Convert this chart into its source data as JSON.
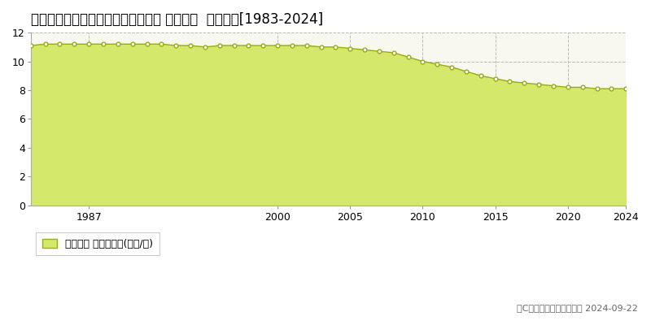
{
  "title": "宮崎県都城市下川東１丁目７号８番 基準地価  地価推移[1983-2024]",
  "years": [
    1983,
    1984,
    1985,
    1986,
    1987,
    1988,
    1989,
    1990,
    1991,
    1992,
    1993,
    1994,
    1995,
    1996,
    1997,
    1998,
    1999,
    2000,
    2001,
    2002,
    2003,
    2004,
    2005,
    2006,
    2007,
    2008,
    2009,
    2010,
    2011,
    2012,
    2013,
    2014,
    2015,
    2016,
    2017,
    2018,
    2019,
    2020,
    2021,
    2022,
    2023,
    2024
  ],
  "values": [
    11.1,
    11.2,
    11.2,
    11.2,
    11.2,
    11.2,
    11.2,
    11.2,
    11.2,
    11.2,
    11.1,
    11.1,
    11.0,
    11.1,
    11.1,
    11.1,
    11.1,
    11.1,
    11.1,
    11.1,
    11.0,
    11.0,
    10.9,
    10.8,
    10.7,
    10.6,
    10.3,
    10.0,
    9.8,
    9.6,
    9.3,
    9.0,
    8.8,
    8.6,
    8.5,
    8.4,
    8.3,
    8.2,
    8.2,
    8.1,
    8.1,
    8.1
  ],
  "fill_color": "#d4e96b",
  "line_color": "#9aab14",
  "marker_facecolor": "#ffffff",
  "marker_edgecolor": "#9aab14",
  "bg_color": "#ffffff",
  "plot_bg_color": "#f8f8f0",
  "grid_color": "#bbbbbb",
  "yticks": [
    0,
    2,
    4,
    6,
    8,
    10,
    12
  ],
  "xticks": [
    1987,
    2000,
    2005,
    2010,
    2015,
    2020,
    2024
  ],
  "ylim": [
    0,
    12
  ],
  "xlim": [
    1983,
    2024
  ],
  "legend_label": "基準地価 平均坪単価(万円/坪)",
  "copyright_text": "（C）土地価格ドットコム 2024-09-22",
  "title_fontsize": 12,
  "axis_fontsize": 9,
  "legend_fontsize": 9,
  "copyright_fontsize": 8
}
